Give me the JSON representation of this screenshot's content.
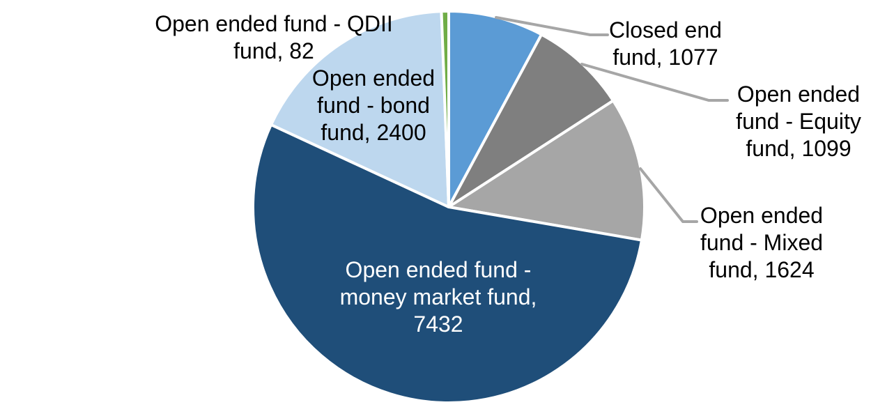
{
  "chart_data": {
    "type": "pie",
    "title": "",
    "background": "#FFFFFF",
    "legend": "none",
    "slice_border_color": "#FFFFFF",
    "leader_line_color": "#A6A6A6",
    "label_text_color": "#000000",
    "label_text_color_on_dark_slice": "#FFFFFF",
    "start_angle_deg": 0,
    "direction": "clockwise",
    "total": 13714,
    "slices": [
      {
        "name": "Closed end fund",
        "value": 1077,
        "color": "#5B9BD5",
        "label": "Closed end fund, 1077",
        "lines": [
          "Closed end",
          "fund, 1077"
        ]
      },
      {
        "name": "Open ended fund - Equity fund",
        "value": 1099,
        "color": "#7F7F7F",
        "label": "Open ended fund - Equity fund, 1099",
        "lines": [
          "Open ended",
          "fund - Equity",
          "fund, 1099"
        ]
      },
      {
        "name": "Open ended fund - Mixed fund",
        "value": 1624,
        "color": "#A6A6A6",
        "label": "Open ended fund - Mixed fund, 1624",
        "lines": [
          "Open ended",
          "fund - Mixed",
          "fund, 1624"
        ]
      },
      {
        "name": "Open ended fund - money market fund",
        "value": 7432,
        "color": "#1F4E79",
        "label": "Open ended fund - money market fund, 7432",
        "lines": [
          "Open ended fund -",
          "money market fund,",
          "7432"
        ]
      },
      {
        "name": "Open ended fund - bond fund",
        "value": 2400,
        "color": "#BDD7EE",
        "label": "Open ended fund - bond fund, 2400",
        "lines": [
          "Open ended",
          "fund - bond",
          "fund, 2400"
        ]
      },
      {
        "name": "Open ended fund - QDII fund",
        "value": 82,
        "color": "#70AD47",
        "label": "Open ended fund - QDII fund, 82",
        "lines": [
          "Open ended fund - QDII",
          "fund, 82"
        ]
      }
    ]
  }
}
